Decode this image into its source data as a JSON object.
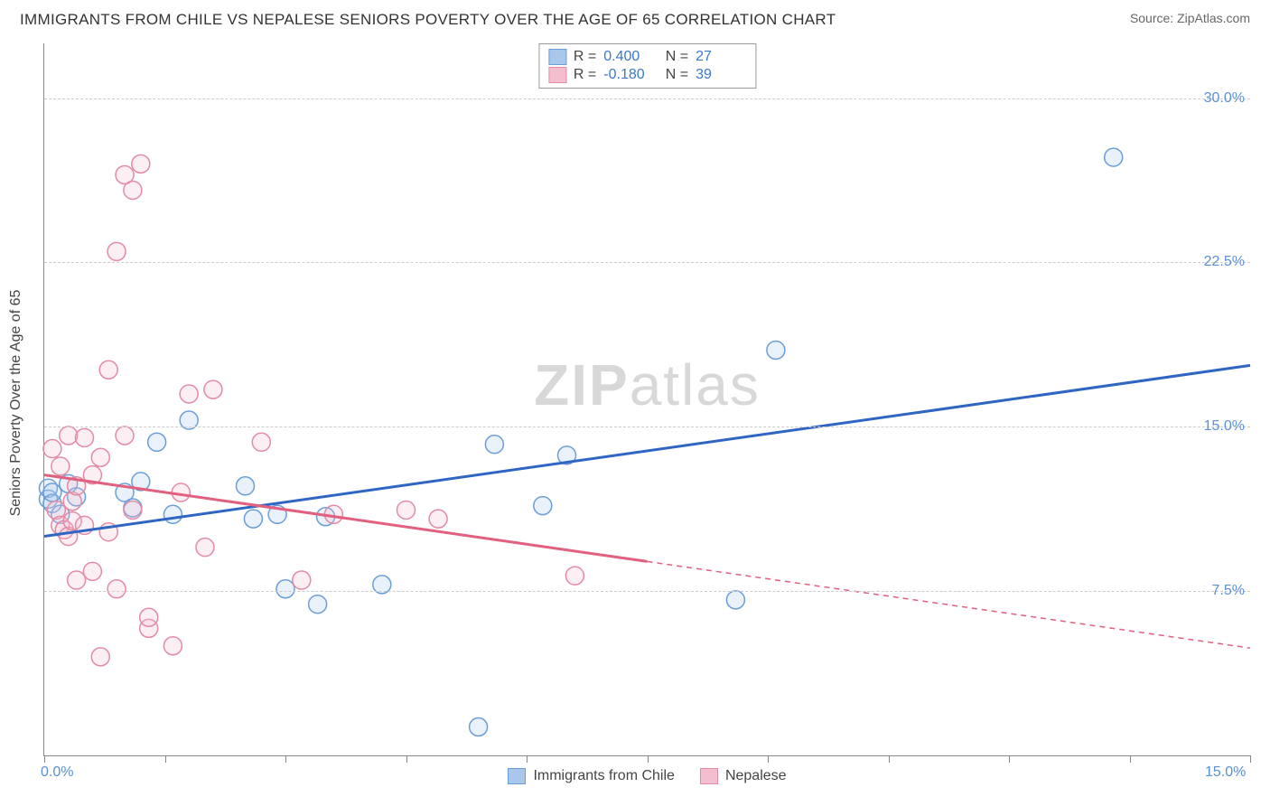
{
  "header": {
    "title": "IMMIGRANTS FROM CHILE VS NEPALESE SENIORS POVERTY OVER THE AGE OF 65 CORRELATION CHART",
    "source_prefix": "Source: ",
    "source_name": "ZipAtlas.com"
  },
  "chart": {
    "type": "scatter",
    "y_axis_label": "Seniors Poverty Over the Age of 65",
    "watermark_bold": "ZIP",
    "watermark_rest": "atlas",
    "xlim": [
      0,
      15
    ],
    "ylim": [
      0,
      32.5
    ],
    "x_ticks": [
      0,
      1.5,
      3,
      4.5,
      6,
      7.5,
      9,
      10.5,
      12,
      13.5,
      15
    ],
    "x_tick_labels_shown": {
      "0": "0.0%",
      "15": "15.0%"
    },
    "y_gridlines": [
      7.5,
      15.0,
      22.5,
      30.0
    ],
    "y_tick_labels": [
      "7.5%",
      "15.0%",
      "22.5%",
      "30.0%"
    ],
    "grid_color": "#cccccc",
    "background_color": "#ffffff",
    "axis_color": "#888888",
    "tick_label_color": "#5b8fd6",
    "marker_radius": 10,
    "marker_stroke_width": 1.5,
    "marker_fill_opacity": 0.25,
    "trend_line_width": 3,
    "series": [
      {
        "name": "Immigrants from Chile",
        "color_stroke": "#6a9ed8",
        "color_fill": "#a8c7ea",
        "line_color": "#2f66c4",
        "R": "0.400",
        "N": "27",
        "trend": {
          "x1": 0,
          "y1": 10.0,
          "x2": 15,
          "y2": 17.8,
          "solid_until_x": 15
        },
        "points": [
          [
            0.05,
            11.7
          ],
          [
            0.05,
            12.2
          ],
          [
            0.1,
            11.5
          ],
          [
            0.1,
            12.0
          ],
          [
            0.2,
            11.0
          ],
          [
            0.3,
            12.4
          ],
          [
            1.0,
            12.0
          ],
          [
            1.1,
            11.3
          ],
          [
            1.2,
            12.5
          ],
          [
            1.4,
            14.3
          ],
          [
            1.6,
            11.0
          ],
          [
            1.8,
            15.3
          ],
          [
            2.5,
            12.3
          ],
          [
            2.6,
            10.8
          ],
          [
            2.9,
            11.0
          ],
          [
            3.0,
            7.6
          ],
          [
            3.4,
            6.9
          ],
          [
            3.5,
            10.9
          ],
          [
            4.2,
            7.8
          ],
          [
            5.4,
            1.3
          ],
          [
            5.6,
            14.2
          ],
          [
            6.2,
            11.4
          ],
          [
            6.5,
            13.7
          ],
          [
            8.6,
            7.1
          ],
          [
            9.1,
            18.5
          ],
          [
            13.3,
            27.3
          ],
          [
            0.4,
            11.8
          ]
        ]
      },
      {
        "name": "Nepalese",
        "color_stroke": "#e48aa4",
        "color_fill": "#f3bfcf",
        "line_color": "#e2607f",
        "R": "-0.180",
        "N": "39",
        "trend": {
          "x1": 0,
          "y1": 12.8,
          "x2": 15,
          "y2": 4.9,
          "solid_until_x": 7.5
        },
        "points": [
          [
            0.1,
            14.0
          ],
          [
            0.15,
            11.2
          ],
          [
            0.2,
            13.2
          ],
          [
            0.2,
            10.5
          ],
          [
            0.25,
            10.3
          ],
          [
            0.3,
            14.6
          ],
          [
            0.3,
            10.0
          ],
          [
            0.35,
            10.7
          ],
          [
            0.35,
            11.6
          ],
          [
            0.4,
            8.0
          ],
          [
            0.4,
            12.3
          ],
          [
            0.5,
            14.5
          ],
          [
            0.5,
            10.5
          ],
          [
            0.6,
            12.8
          ],
          [
            0.6,
            8.4
          ],
          [
            0.7,
            13.6
          ],
          [
            0.7,
            4.5
          ],
          [
            0.8,
            17.6
          ],
          [
            0.8,
            10.2
          ],
          [
            0.9,
            7.6
          ],
          [
            0.9,
            23.0
          ],
          [
            1.0,
            26.5
          ],
          [
            1.0,
            14.6
          ],
          [
            1.1,
            25.8
          ],
          [
            1.1,
            11.2
          ],
          [
            1.2,
            27.0
          ],
          [
            1.3,
            5.8
          ],
          [
            1.3,
            6.3
          ],
          [
            1.6,
            5.0
          ],
          [
            1.7,
            12.0
          ],
          [
            1.8,
            16.5
          ],
          [
            2.0,
            9.5
          ],
          [
            2.1,
            16.7
          ],
          [
            2.7,
            14.3
          ],
          [
            3.2,
            8.0
          ],
          [
            3.6,
            11.0
          ],
          [
            4.5,
            11.2
          ],
          [
            4.9,
            10.8
          ],
          [
            6.6,
            8.2
          ]
        ]
      }
    ],
    "bottom_legend": [
      {
        "label": "Immigrants from Chile",
        "stroke": "#6a9ed8",
        "fill": "#a8c7ea"
      },
      {
        "label": "Nepalese",
        "stroke": "#e48aa4",
        "fill": "#f3bfcf"
      }
    ]
  }
}
